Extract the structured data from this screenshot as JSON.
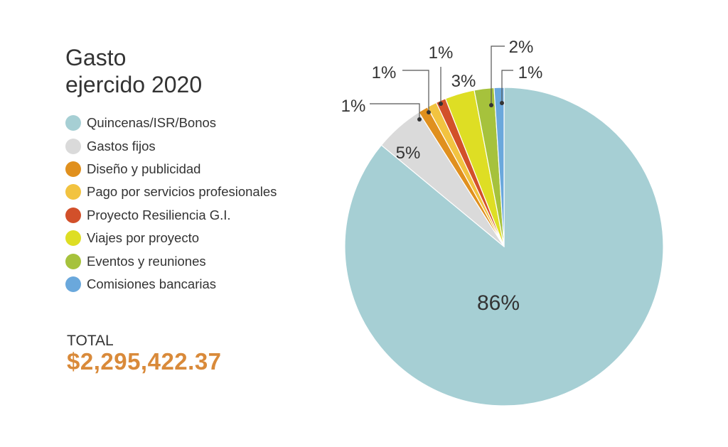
{
  "title": {
    "line1": "Gasto",
    "line2": "ejercido 2020"
  },
  "total": {
    "label": "TOTAL",
    "value": "$2,295,422.37",
    "color": "#d98a3a"
  },
  "chart_data": {
    "type": "pie",
    "start": "12 o'clock, clockwise",
    "slices": [
      {
        "label": "Quincenas/ISR/Bonos",
        "value": 86,
        "display": "86%",
        "color": "#a6cfd4"
      },
      {
        "label": "Gastos fijos",
        "value": 5,
        "display": "5%",
        "color": "#dadada"
      },
      {
        "label": "Diseño y publicidad",
        "value": 1,
        "display": "1%",
        "color": "#e0901e"
      },
      {
        "label": "Pago por servicios profesionales",
        "value": 1,
        "display": "1%",
        "color": "#f2c340"
      },
      {
        "label": "Proyecto Resiliencia G.I.",
        "value": 1,
        "display": "1%",
        "color": "#d2502a"
      },
      {
        "label": "Viajes por proyecto",
        "value": 3,
        "display": "3%",
        "color": "#dede24"
      },
      {
        "label": "Eventos y reuniones",
        "value": 2,
        "display": "2%",
        "color": "#a6c23c"
      },
      {
        "label": "Comisiones bancarias",
        "value": 1,
        "display": "1%",
        "color": "#6aa8dc"
      }
    ]
  }
}
